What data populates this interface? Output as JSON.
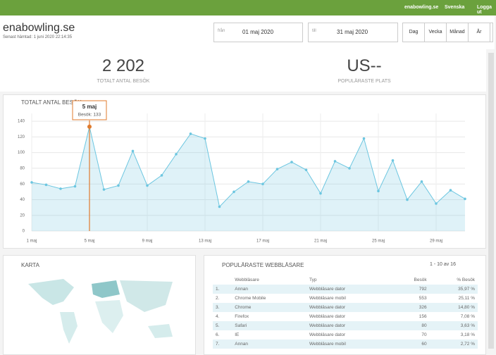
{
  "topbar": {
    "site": "enabowling.se",
    "language": "Svenska",
    "logout": "Logga ut"
  },
  "header": {
    "title": "enabowling.se",
    "fetched": "Senast hämtad: 1 juni 2020 22:14:35",
    "from_label": "från",
    "from": "01 maj 2020",
    "to_label": "till",
    "to": "31 maj 2020",
    "periods": [
      "Dag",
      "Vecka",
      "Månad",
      "År"
    ]
  },
  "stats": [
    {
      "value": "2 202",
      "label": "TOTALT ANTAL BESÖK"
    },
    {
      "value": "US--",
      "label": "POPULÄRASTE PLATS"
    }
  ],
  "chart_data": {
    "type": "area",
    "title": "TOTALT ANTAL BESÖK",
    "color": "#6cc6e0",
    "categories": [
      "1 maj",
      null,
      null,
      null,
      "5 maj",
      null,
      null,
      null,
      "9 maj",
      null,
      null,
      null,
      "13 maj",
      null,
      null,
      null,
      "17 maj",
      null,
      null,
      null,
      "21 maj",
      null,
      null,
      null,
      "25 maj",
      null,
      null,
      null,
      "29 maj",
      null,
      null
    ],
    "values": [
      62,
      59,
      54,
      57,
      133,
      53,
      58,
      102,
      58,
      71,
      98,
      124,
      118,
      31,
      50,
      63,
      60,
      79,
      88,
      78,
      48,
      89,
      80,
      118,
      51,
      90,
      40,
      63,
      35,
      52,
      41
    ],
    "ylim": [
      0,
      150
    ],
    "yticks": [
      0,
      20,
      40,
      60,
      80,
      100,
      120,
      140
    ],
    "grid": true,
    "tooltip": {
      "title": "5 maj",
      "text": "Besök: 133",
      "index": 4
    }
  },
  "map": {
    "title": "KARTA"
  },
  "browsers": {
    "title": "POPULÄRASTE WEBBLÄSARE",
    "pagination": "1 - 10 av 16",
    "columns": [
      "Webbläsare",
      "Typ",
      "Besök",
      "% Besök"
    ],
    "rows": [
      [
        "1.",
        "Annan",
        "Webbläsare dator",
        792,
        "35,97 %"
      ],
      [
        "2.",
        "Chrome Mobile",
        "Webbläsare mobil",
        553,
        "25,11 %"
      ],
      [
        "3.",
        "Chrome",
        "Webbläsare dator",
        326,
        "14,80 %"
      ],
      [
        "4.",
        "Firefox",
        "Webbläsare dator",
        156,
        "7,08 %"
      ],
      [
        "5.",
        "Safari",
        "Webbläsare dator",
        80,
        "3,63 %"
      ],
      [
        "6.",
        "IE",
        "Webbläsare dator",
        70,
        "3,18 %"
      ],
      [
        "7.",
        "Annan",
        "Webbläsare mobil",
        60,
        "2,72 %"
      ]
    ]
  }
}
